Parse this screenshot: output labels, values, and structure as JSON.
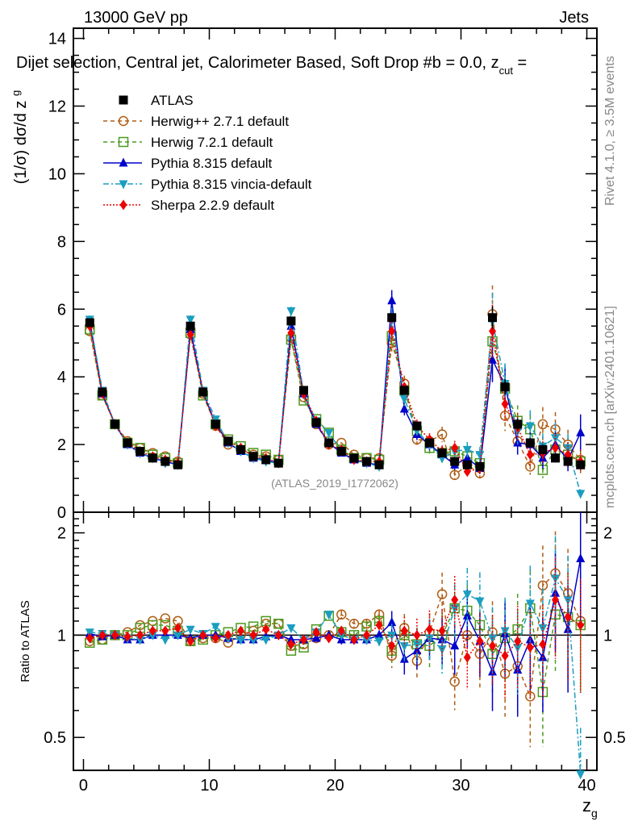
{
  "header": {
    "left_label": "13000 GeV pp",
    "right_label": "Jets",
    "selection_title": "Dijet selection, Central jet, Calorimeter Based, Soft Drop #b = 0.0, z",
    "selection_sub": "cut",
    "selection_tail": " =",
    "side_label_top": "Rivet 4.1.0, ≥ 3.5M events",
    "side_label_bottom": "mcplots.cern.ch [arXiv:2401.10621]",
    "analysis_id": "(ATLAS_2019_I1772062)"
  },
  "chart_data": [
    {
      "type": "line",
      "panel": "main",
      "ylabel": "(1/σ) dσ/d z_g",
      "xlabel": "",
      "xlim": [
        -0.8,
        40.8
      ],
      "ylim": [
        0,
        14.3
      ],
      "yticks": [
        0,
        2,
        4,
        6,
        8,
        10,
        12,
        14
      ],
      "ytick_labels": [
        "0",
        "2",
        "4",
        "6",
        "8",
        "10",
        "12",
        "14"
      ],
      "legend_position": "top-left",
      "x": [
        0.5,
        1.5,
        2.5,
        3.5,
        4.5,
        5.5,
        6.5,
        7.5,
        8.5,
        9.5,
        10.5,
        11.5,
        12.5,
        13.5,
        14.5,
        15.5,
        16.5,
        17.5,
        18.5,
        19.5,
        20.5,
        21.5,
        22.5,
        23.5,
        24.5,
        25.5,
        26.5,
        27.5,
        28.5,
        29.5,
        30.5,
        31.5,
        32.5,
        33.5,
        34.5,
        35.5,
        36.5,
        37.5,
        38.5,
        39.5
      ],
      "series": [
        {
          "name": "ATLAS",
          "color": "#000000",
          "marker": "square-filled",
          "values": [
            5.6,
            3.55,
            2.6,
            2.05,
            1.8,
            1.6,
            1.5,
            1.4,
            5.5,
            3.55,
            2.6,
            2.1,
            1.85,
            1.65,
            1.55,
            1.45,
            5.65,
            3.6,
            2.65,
            2.05,
            1.8,
            1.6,
            1.5,
            1.4,
            5.75,
            3.6,
            2.55,
            2.05,
            1.75,
            1.5,
            1.4,
            1.35,
            5.75,
            3.7,
            2.6,
            2.05,
            1.85,
            1.6,
            1.5,
            1.4
          ]
        },
        {
          "name": "Herwig++ 2.7.1 default",
          "color": "#b05d14",
          "marker": "circle-open",
          "line": "dashed",
          "values": [
            5.35,
            3.45,
            2.6,
            2.1,
            1.9,
            1.75,
            1.65,
            1.5,
            5.25,
            3.5,
            2.55,
            2.0,
            1.85,
            1.7,
            1.65,
            1.55,
            5.15,
            3.4,
            2.6,
            2.0,
            2.05,
            1.7,
            1.6,
            1.6,
            5.0,
            3.8,
            2.15,
            2.1,
            2.3,
            1.1,
            1.4,
            1.15,
            5.85,
            2.85,
            2.1,
            1.35,
            2.6,
            2.45,
            2.0,
            1.55
          ]
        },
        {
          "name": "Herwig 7.2.1 default",
          "color": "#4a9a1e",
          "marker": "square-open",
          "line": "dashed",
          "values": [
            5.4,
            3.45,
            2.6,
            2.05,
            1.9,
            1.7,
            1.6,
            1.45,
            5.3,
            3.45,
            2.6,
            2.15,
            1.95,
            1.75,
            1.7,
            1.55,
            5.1,
            3.3,
            2.75,
            2.35,
            1.85,
            1.6,
            1.6,
            1.55,
            5.2,
            3.6,
            2.4,
            1.9,
            1.75,
            1.8,
            1.65,
            1.45,
            5.05,
            3.65,
            2.7,
            2.45,
            1.25,
            1.85,
            1.7,
            1.5
          ]
        },
        {
          "name": "Pythia 8.315 default",
          "color": "#0000cc",
          "marker": "triangle-up-filled",
          "line": "solid",
          "values": [
            5.65,
            3.5,
            2.6,
            2.0,
            1.75,
            1.6,
            1.5,
            1.4,
            5.4,
            3.55,
            2.6,
            2.05,
            1.8,
            1.6,
            1.55,
            1.45,
            5.5,
            3.5,
            2.6,
            2.05,
            1.75,
            1.55,
            1.45,
            1.4,
            6.25,
            3.05,
            2.3,
            2.0,
            1.7,
            1.4,
            1.6,
            1.3,
            4.5,
            3.75,
            2.05,
            2.0,
            1.6,
            2.0,
            1.55,
            2.35
          ]
        },
        {
          "name": "Pythia 8.315 vincia-default",
          "color": "#1a9ec0",
          "marker": "triangle-down-filled",
          "line": "dashdot",
          "values": [
            5.7,
            3.6,
            2.6,
            2.0,
            1.75,
            1.6,
            1.45,
            1.4,
            5.7,
            3.6,
            2.75,
            2.05,
            1.8,
            1.6,
            1.5,
            1.45,
            5.95,
            3.5,
            2.7,
            2.35,
            1.8,
            1.55,
            1.45,
            1.35,
            5.75,
            3.35,
            2.4,
            2.0,
            1.6,
            1.8,
            1.85,
            1.7,
            5.65,
            3.8,
            2.4,
            2.55,
            1.95,
            2.2,
            1.9,
            0.55
          ]
        },
        {
          "name": "Sherpa 2.2.9 default",
          "color": "#ee0000",
          "marker": "diamond-filled",
          "line": "dotted",
          "values": [
            5.5,
            3.5,
            2.6,
            2.05,
            1.8,
            1.65,
            1.55,
            1.45,
            5.25,
            3.55,
            2.55,
            2.1,
            1.9,
            1.65,
            1.6,
            1.45,
            5.3,
            3.5,
            2.7,
            2.0,
            1.85,
            1.55,
            1.5,
            1.5,
            5.35,
            3.7,
            2.55,
            2.15,
            1.8,
            1.9,
            1.2,
            1.3,
            5.35,
            3.2,
            2.5,
            1.7,
            1.75,
            1.9,
            1.7,
            1.5
          ]
        }
      ]
    },
    {
      "type": "line",
      "panel": "ratio",
      "ylabel": "Ratio to ATLAS",
      "xlabel": "z_g",
      "yscale": "log",
      "xlim": [
        -0.8,
        40.8
      ],
      "ylim": [
        0.4,
        2.3
      ],
      "yticks": [
        0.5,
        1,
        2
      ],
      "ytick_labels": [
        "0.5",
        "1",
        "2"
      ],
      "xticks": [
        0,
        10,
        20,
        30,
        40
      ],
      "xtick_labels": [
        "0",
        "10",
        "20",
        "30",
        "40"
      ],
      "reference": 1.0,
      "x": [
        0.5,
        1.5,
        2.5,
        3.5,
        4.5,
        5.5,
        6.5,
        7.5,
        8.5,
        9.5,
        10.5,
        11.5,
        12.5,
        13.5,
        14.5,
        15.5,
        16.5,
        17.5,
        18.5,
        19.5,
        20.5,
        21.5,
        22.5,
        23.5,
        24.5,
        25.5,
        26.5,
        27.5,
        28.5,
        29.5,
        30.5,
        31.5,
        32.5,
        33.5,
        34.5,
        35.5,
        36.5,
        37.5,
        38.5,
        39.5
      ],
      "series": [
        {
          "name": "Herwig++ 2.7.1 default",
          "color": "#b05d14",
          "values": [
            0.96,
            0.97,
            1.0,
            1.02,
            1.07,
            1.1,
            1.12,
            1.1,
            0.96,
            0.98,
            0.98,
            0.95,
            1.0,
            1.03,
            1.08,
            1.08,
            0.93,
            0.94,
            0.98,
            1.0,
            1.15,
            1.08,
            1.08,
            1.15,
            0.87,
            1.05,
            0.84,
            1.02,
            1.32,
            0.73,
            1.0,
            0.88,
            1.02,
            0.77,
            0.81,
            0.66,
            1.4,
            1.52,
            1.33,
            1.1
          ]
        },
        {
          "name": "Herwig 7.2.1 default",
          "color": "#4a9a1e",
          "values": [
            0.95,
            0.97,
            1.0,
            1.0,
            1.05,
            1.07,
            1.07,
            1.03,
            0.96,
            0.97,
            1.0,
            1.02,
            1.05,
            1.06,
            1.1,
            1.08,
            0.9,
            0.92,
            1.04,
            1.14,
            1.02,
            1.0,
            1.06,
            1.1,
            0.9,
            1.0,
            0.94,
            0.93,
            1.0,
            1.2,
            1.18,
            1.07,
            0.88,
            0.98,
            1.04,
            1.2,
            0.68,
            1.15,
            1.13,
            1.07
          ]
        },
        {
          "name": "Pythia 8.315 default",
          "color": "#0000cc",
          "values": [
            1.01,
            0.99,
            1.0,
            0.97,
            0.97,
            1.0,
            1.0,
            1.0,
            0.98,
            1.0,
            1.0,
            0.98,
            0.97,
            0.97,
            0.99,
            1.0,
            0.97,
            0.97,
            0.98,
            1.0,
            0.97,
            0.97,
            0.97,
            1.0,
            1.09,
            0.85,
            0.9,
            0.98,
            0.97,
            0.93,
            1.14,
            0.96,
            0.78,
            1.01,
            0.79,
            0.97,
            0.86,
            1.33,
            1.04,
            1.68
          ]
        },
        {
          "name": "Pythia 8.315 vincia-default",
          "color": "#1a9ec0",
          "values": [
            1.02,
            1.01,
            1.0,
            0.98,
            0.97,
            1.0,
            0.97,
            1.0,
            1.04,
            1.01,
            1.06,
            0.98,
            0.97,
            0.97,
            0.97,
            1.0,
            1.05,
            0.97,
            1.02,
            1.15,
            1.0,
            0.97,
            0.97,
            0.96,
            1.0,
            0.93,
            0.94,
            0.98,
            0.91,
            1.2,
            1.32,
            1.26,
            0.98,
            1.03,
            0.92,
            1.24,
            1.05,
            1.47,
            1.27,
            0.39
          ]
        },
        {
          "name": "Sherpa 2.2.9 default",
          "color": "#ee0000",
          "values": [
            0.98,
            1.0,
            1.0,
            0.99,
            1.0,
            1.03,
            1.03,
            1.05,
            0.96,
            1.0,
            0.98,
            1.0,
            1.03,
            1.0,
            1.04,
            1.0,
            0.94,
            0.97,
            1.02,
            0.98,
            1.03,
            0.97,
            1.0,
            1.07,
            0.93,
            1.03,
            1.0,
            1.04,
            1.03,
            1.27,
            0.86,
            0.96,
            0.93,
            0.87,
            0.96,
            0.92,
            0.94,
            1.27,
            1.13,
            1.07
          ]
        }
      ]
    }
  ]
}
